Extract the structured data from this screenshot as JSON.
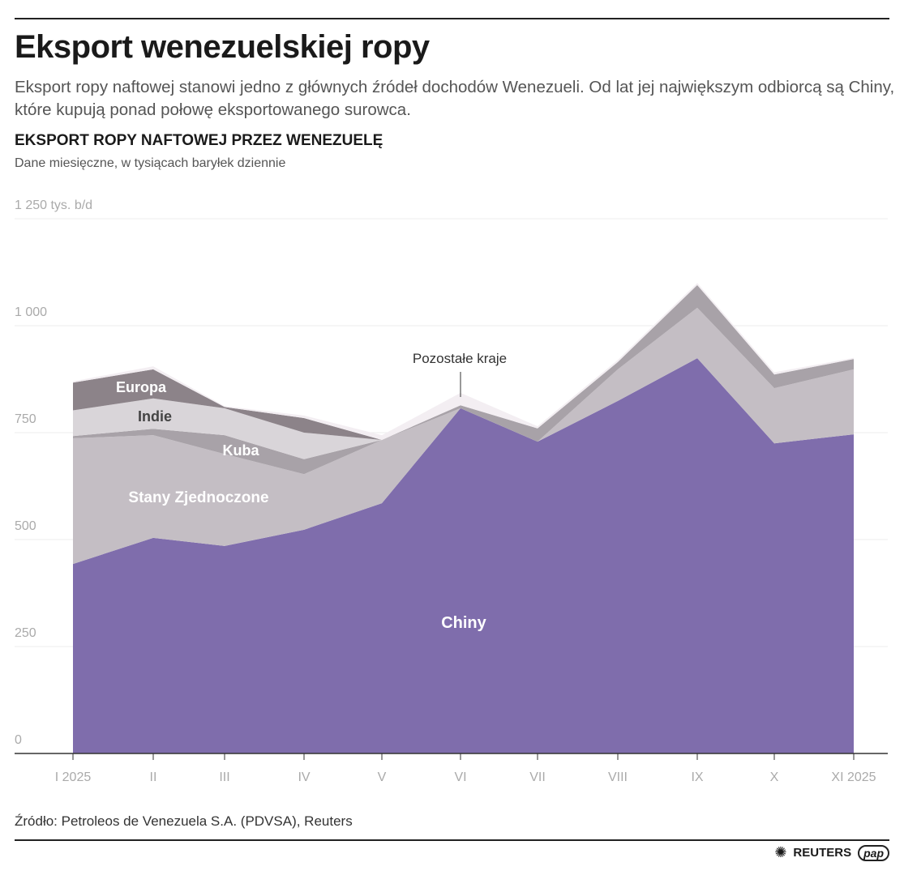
{
  "header": {
    "title": "Eksport wenezuelskiej ropy",
    "subtitle": "Eksport ropy naftowej stanowi jedno z głównych źródeł dochodów Wenezueli. Od lat jej największym odbiorcą są Chiny, które kupują ponad połowę eksportowanego surowca."
  },
  "chart_data": {
    "type": "area",
    "stacked": true,
    "title": "EKSPORT ROPY NAFTOWEJ PRZEZ WENEZUELĘ",
    "subtitle": "Dane miesięczne, w tysiącach baryłek dziennie",
    "ylabel_top": "1 250 tys. b/d",
    "categories": [
      "I 2025",
      "II",
      "III",
      "IV",
      "V",
      "VI",
      "VII",
      "VIII",
      "IX",
      "X",
      "XI 2025"
    ],
    "yticks": [
      0,
      250,
      500,
      750,
      1000,
      1250
    ],
    "ytick_labels": [
      "0",
      "250",
      "500",
      "750",
      "1 000",
      "1 250 tys. b/d"
    ],
    "ylim": [
      0,
      1250
    ],
    "grid": true,
    "series": [
      {
        "name": "Chiny",
        "color": "#7f6dac",
        "label_color": "#ffffff",
        "values": [
          443,
          504,
          485,
          523,
          585,
          807,
          729,
          824,
          924,
          725,
          746
        ]
      },
      {
        "name": "Stany Zjednoczone",
        "color": "#c4bec4",
        "label_color": "#ffffff",
        "values": [
          294,
          240,
          215,
          130,
          148,
          0,
          0,
          74,
          118,
          129,
          152
        ]
      },
      {
        "name": "Kuba",
        "color": "#a8a2a8",
        "label_color": "#ffffff",
        "values": [
          5,
          15,
          44,
          35,
          0,
          7,
          31,
          17,
          53,
          32,
          24
        ]
      },
      {
        "name": "Indie",
        "color": "#d9d5d9",
        "label_color": "#444444",
        "values": [
          60,
          71,
          63,
          62,
          0,
          0,
          0,
          0,
          0,
          0,
          0
        ]
      },
      {
        "name": "Europa",
        "color": "#8c8389",
        "label_color": "#ffffff",
        "values": [
          65,
          68,
          3,
          34,
          0,
          0,
          0,
          0,
          0,
          0,
          0
        ]
      },
      {
        "name": "Pozostałe kraje",
        "color": "#f3eef2",
        "label_color": "#333333",
        "values": [
          3,
          7,
          2,
          6,
          11,
          29,
          5,
          5,
          5,
          5,
          3
        ]
      }
    ]
  },
  "footer": {
    "source": "Źródło: Petroleos de Venezuela S.A. (PDVSA), Reuters",
    "logo_reuters": "REUTERS",
    "logo_pap": "pap"
  }
}
